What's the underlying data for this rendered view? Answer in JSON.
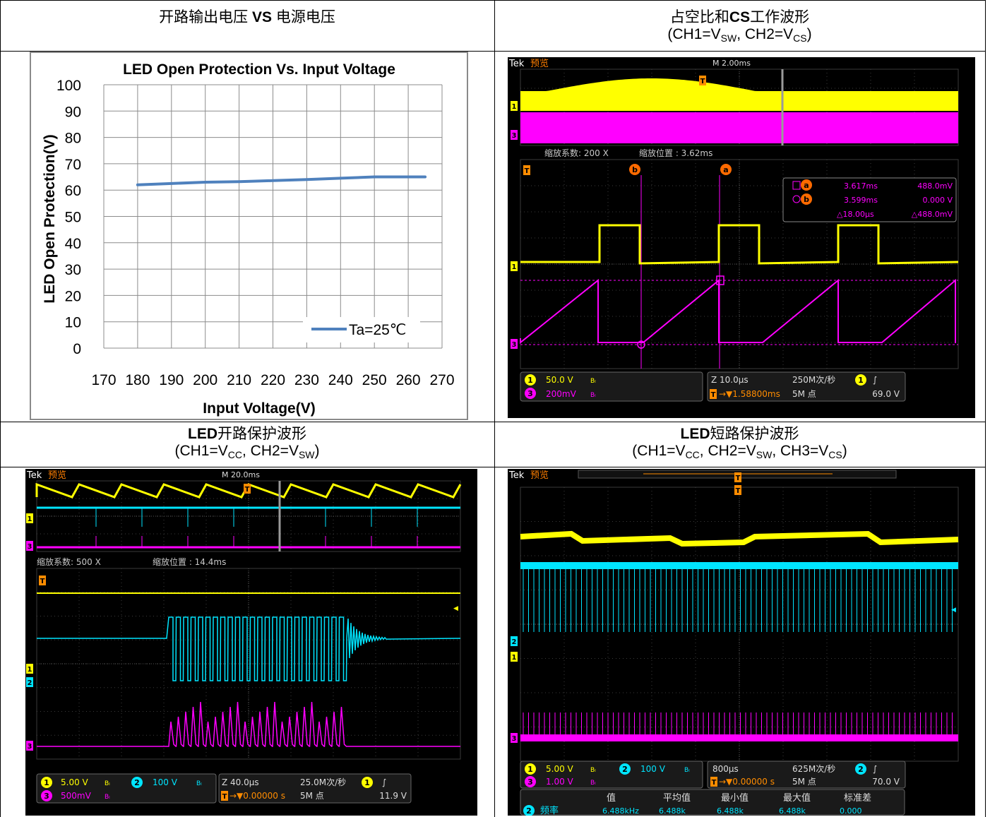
{
  "cells": {
    "top_left": {
      "title_a": "开路输出电压 ",
      "title_b": "VS",
      "title_c": " 电源电压"
    },
    "top_right": {
      "title_a": "占空比和",
      "title_b": "CS",
      "title_c": "工作波形",
      "sub": [
        "(CH1=V",
        "SW",
        ", CH2=V",
        "CS",
        ")"
      ]
    },
    "bottom_left": {
      "title_a": "LED",
      "title_b": "开路保护波形",
      "sub": [
        "(CH1=V",
        "CC",
        ", CH2=V",
        "SW",
        ")"
      ]
    },
    "bottom_right": {
      "title_a": "LED",
      "title_b": "短路保护波形",
      "sub": [
        "(CH1=V",
        "CC",
        ", CH2=V",
        "SW",
        ", CH3=V",
        "CS",
        ")"
      ]
    }
  },
  "chart_data": {
    "type": "line",
    "title": "LED Open Protection Vs. Input Voltage",
    "xlabel": "Input Voltage(V)",
    "ylabel": "LED Open Protection(V)",
    "xticks": [
      "170",
      "180",
      "190",
      "200",
      "210",
      "220",
      "230",
      "240",
      "250",
      "260",
      "270"
    ],
    "yticks": [
      "0",
      "10",
      "20",
      "30",
      "40",
      "50",
      "60",
      "70",
      "80",
      "90",
      "100"
    ],
    "ylim": [
      0,
      100
    ],
    "grid": true,
    "legend": "bottom-right",
    "series": [
      {
        "name": "Ta=25℃",
        "color": "#4f81bd",
        "x": [
          180,
          190,
          200,
          210,
          220,
          230,
          240,
          250,
          260,
          265
        ],
        "values": [
          62,
          62.5,
          63,
          63.2,
          63.6,
          64,
          64.5,
          65,
          65,
          65
        ]
      }
    ]
  },
  "scope1": {
    "brand": "Tek",
    "mode": "预览",
    "timebase_top": "M 2.00ms",
    "zoom_factor": "缩放系数: 200 X",
    "zoom_pos": "缩放位置 : 3.62ms",
    "cursor": {
      "a_time": "3.617ms",
      "a_val": "488.0mV",
      "b_time": "3.599ms",
      "b_val": "0.000 V",
      "d_time": "△18.00μs",
      "d_val": "△488.0mV"
    },
    "ch1": "50.0 V",
    "ch3": "200mV",
    "bw": "Bₗ",
    "zoom": "Z 10.0μs",
    "trig_pos": "1.58800ms",
    "rate": "250M次/秒",
    "points": "5M 点",
    "trig_level": "69.0 V"
  },
  "scope2": {
    "brand": "Tek",
    "mode": "预览",
    "timebase_top": "M 20.0ms",
    "zoom_factor": "缩放系数: 500 X",
    "zoom_pos": "缩放位置 : 14.4ms",
    "ch1": "5.00 V",
    "ch2": "100 V",
    "ch3": "500mV",
    "zoom": "Z 40.0μs",
    "trig_pos": "0.00000 s",
    "rate": "25.0M次/秒",
    "points": "5M 点",
    "trig_level": "11.9 V"
  },
  "scope3": {
    "brand": "Tek",
    "mode": "预览",
    "ch1": "5.00 V",
    "ch2": "100 V",
    "ch3": "1.00 V",
    "timebase": "800μs",
    "trig_pos": "0.00000 s",
    "rate": "625M次/秒",
    "points": "5M 点",
    "trig_level": "70.0 V",
    "meas_headers": [
      "值",
      "平均值",
      "最小值",
      "最大值",
      "标准差"
    ],
    "meas_label": "频率",
    "meas_values": [
      "6.488kHz",
      "6.488k",
      "6.488k",
      "6.488k",
      "0.000"
    ]
  },
  "colors": {
    "ch1": "#ffff00",
    "ch2": "#00e5ff",
    "ch3": "#ff00ff",
    "series": "#4f81bd"
  }
}
